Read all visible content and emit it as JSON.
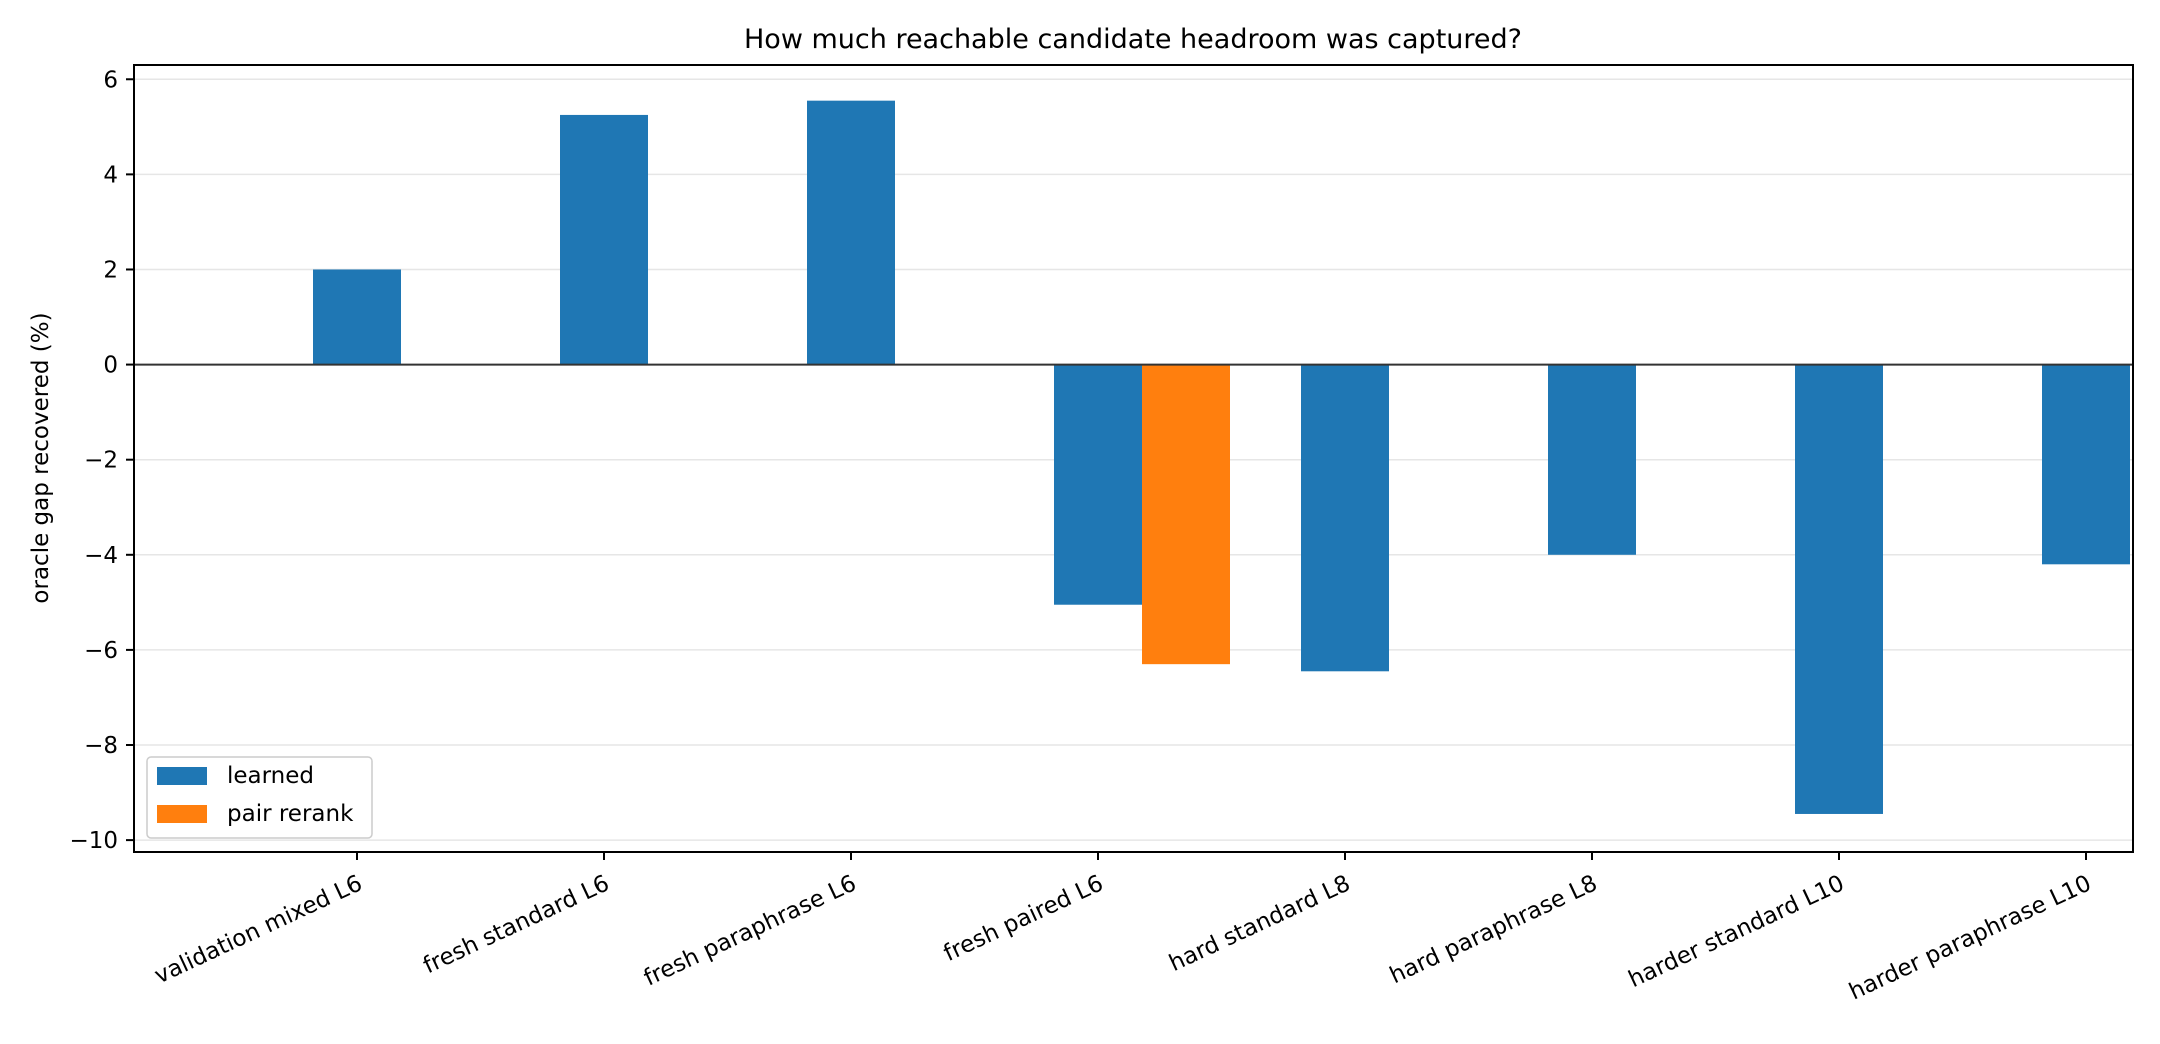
{
  "chart_data": {
    "type": "bar",
    "title": "How much reachable candidate headroom was captured?",
    "xlabel": "",
    "ylabel": "oracle gap recovered (%)",
    "ylim": [
      -10.25,
      6.3
    ],
    "yticks": [
      6,
      4,
      2,
      0,
      -2,
      -4,
      -6,
      -8,
      -10
    ],
    "grid": true,
    "legend_position": "lower-left",
    "categories": [
      "validation mixed L6",
      "fresh standard L6",
      "fresh paraphrase L6",
      "fresh paired L6",
      "hard standard L8",
      "hard paraphrase L8",
      "harder standard L10",
      "harder paraphrase L10"
    ],
    "series": [
      {
        "name": "learned",
        "color": "#1f77b4",
        "values": [
          2.0,
          5.25,
          5.55,
          -5.05,
          -6.45,
          -4.0,
          -9.45,
          -4.2
        ]
      },
      {
        "name": "pair rerank",
        "color": "#ff7f0e",
        "values": [
          null,
          null,
          null,
          -6.3,
          null,
          null,
          null,
          null
        ]
      }
    ]
  }
}
